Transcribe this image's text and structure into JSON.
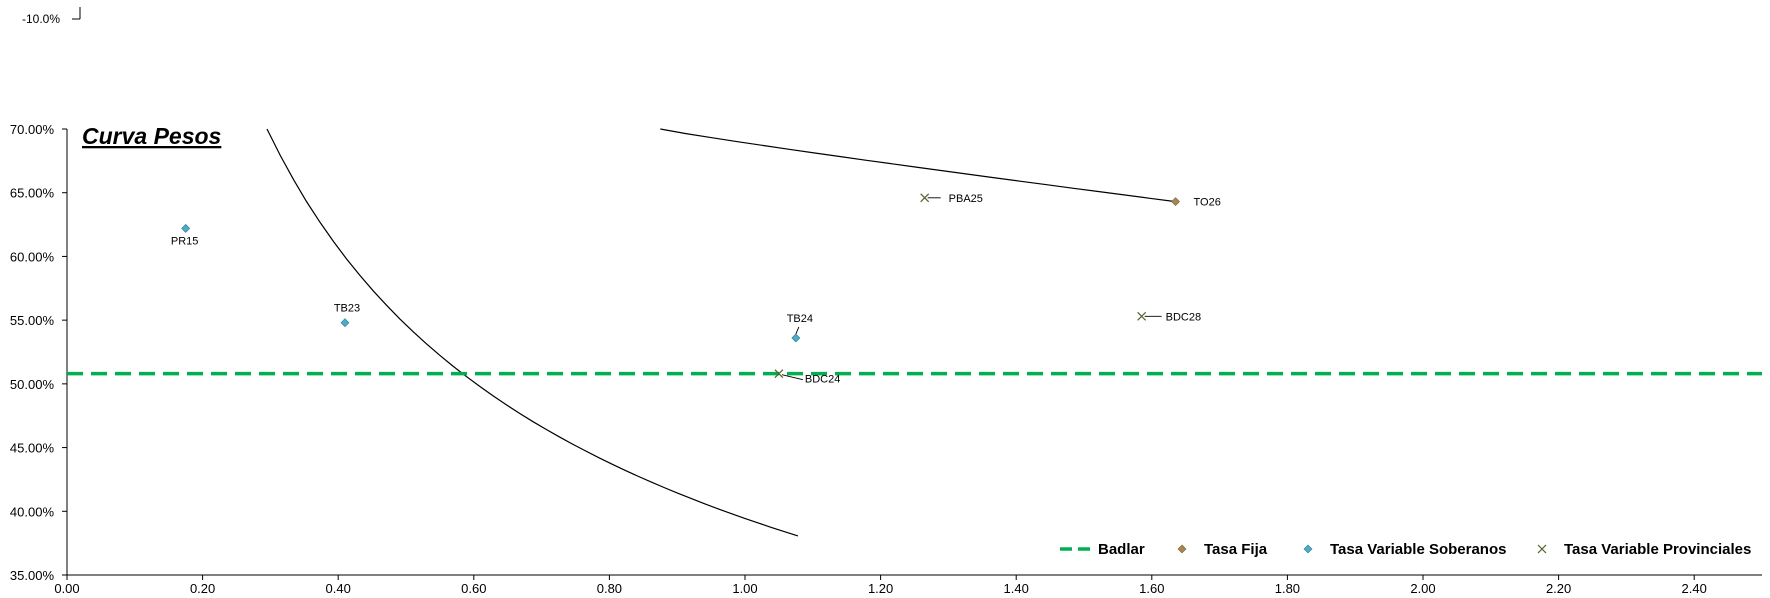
{
  "residual_tick_label": "-10.0%",
  "chart_data": {
    "type": "scatter",
    "title": "Curva  Pesos",
    "xlabel": "",
    "ylabel": "",
    "xlim": [
      0,
      2.5
    ],
    "ylim": [
      0.35,
      0.7
    ],
    "x_ticks": [
      0,
      0.2,
      0.4,
      0.6,
      0.8,
      1.0,
      1.2,
      1.4,
      1.6,
      1.8,
      2.0,
      2.2,
      2.4
    ],
    "x_tick_labels": [
      "0.00",
      "0.20",
      "0.40",
      "0.60",
      "0.80",
      "1.00",
      "1.20",
      "1.40",
      "1.60",
      "1.80",
      "2.00",
      "2.20",
      "2.40"
    ],
    "y_ticks": [
      0.35,
      0.4,
      0.45,
      0.5,
      0.55,
      0.6,
      0.65,
      0.7
    ],
    "y_tick_labels": [
      "35.00%",
      "40.00%",
      "45.00%",
      "50.00%",
      "55.00%",
      "60.00%",
      "65.00%",
      "70.00%"
    ],
    "grid": false,
    "legend_position": "bottom-right",
    "badlar": {
      "name": "Badlar",
      "value": 0.508,
      "color": "#00b050"
    },
    "series": [
      {
        "name": "Tasa Fija",
        "marker": "diamond",
        "color": "#a6874f",
        "points": [
          {
            "x": 1.635,
            "y": 0.643,
            "label": "TO26"
          }
        ]
      },
      {
        "name": "Tasa Variable Soberanos",
        "marker": "diamond",
        "color": "#4bacc6",
        "points": [
          {
            "x": 0.175,
            "y": 0.622,
            "label": "PR15"
          },
          {
            "x": 0.41,
            "y": 0.548,
            "label": "TB23"
          },
          {
            "x": 1.075,
            "y": 0.536,
            "label": "TB24"
          }
        ]
      },
      {
        "name": "Tasa Variable Provinciales",
        "marker": "x",
        "color": "#4f6228",
        "points": [
          {
            "x": 1.265,
            "y": 0.646,
            "label": "PBA25"
          },
          {
            "x": 1.05,
            "y": 0.508,
            "label": "BDC24"
          },
          {
            "x": 1.585,
            "y": 0.553,
            "label": "BDC28"
          }
        ]
      }
    ]
  }
}
